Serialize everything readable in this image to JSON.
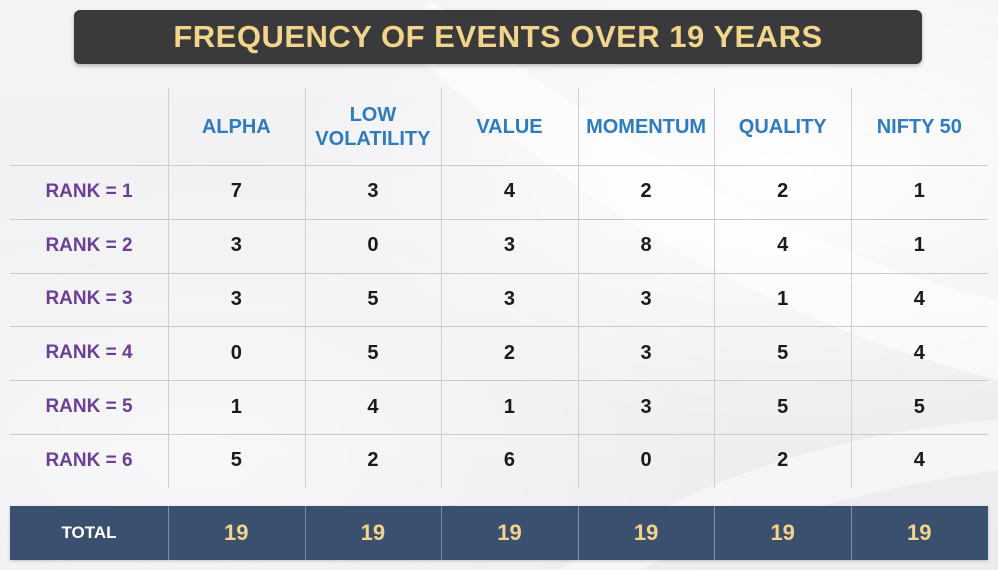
{
  "chart_data": {
    "type": "table",
    "title": "FREQUENCY OF EVENTS OVER 19 YEARS",
    "columns": [
      {
        "label": "ALPHA",
        "lines": [
          "ALPHA"
        ]
      },
      {
        "label": "LOW VOLATILITY",
        "lines": [
          "LOW",
          "VOLATILITY"
        ]
      },
      {
        "label": "VALUE",
        "lines": [
          "VALUE"
        ]
      },
      {
        "label": "MOMENTUM",
        "lines": [
          "MOMENTUM"
        ]
      },
      {
        "label": "QUALITY",
        "lines": [
          "QUALITY"
        ]
      },
      {
        "label": "NIFTY 50",
        "lines": [
          "NIFTY 50"
        ]
      }
    ],
    "rows": [
      {
        "label": "RANK = 1",
        "values": [
          7,
          3,
          4,
          2,
          2,
          1
        ]
      },
      {
        "label": "RANK = 2",
        "values": [
          3,
          0,
          3,
          8,
          4,
          1
        ]
      },
      {
        "label": "RANK = 3",
        "values": [
          3,
          5,
          3,
          3,
          1,
          4
        ]
      },
      {
        "label": "RANK = 4",
        "values": [
          0,
          5,
          2,
          3,
          5,
          4
        ]
      },
      {
        "label": "RANK = 5",
        "values": [
          1,
          4,
          1,
          3,
          5,
          5
        ]
      },
      {
        "label": "RANK = 6",
        "values": [
          5,
          2,
          6,
          0,
          2,
          4
        ]
      }
    ],
    "total": {
      "label": "TOTAL",
      "values": [
        19,
        19,
        19,
        19,
        19,
        19
      ]
    }
  },
  "colors": {
    "title_bg": "#3a3a3c",
    "title_text": "#f2d58a",
    "header_text": "#2e7bbf",
    "row_label_text": "#6b3e97",
    "total_bg": "#3b4f6e",
    "total_value_text": "#f2d58a"
  }
}
